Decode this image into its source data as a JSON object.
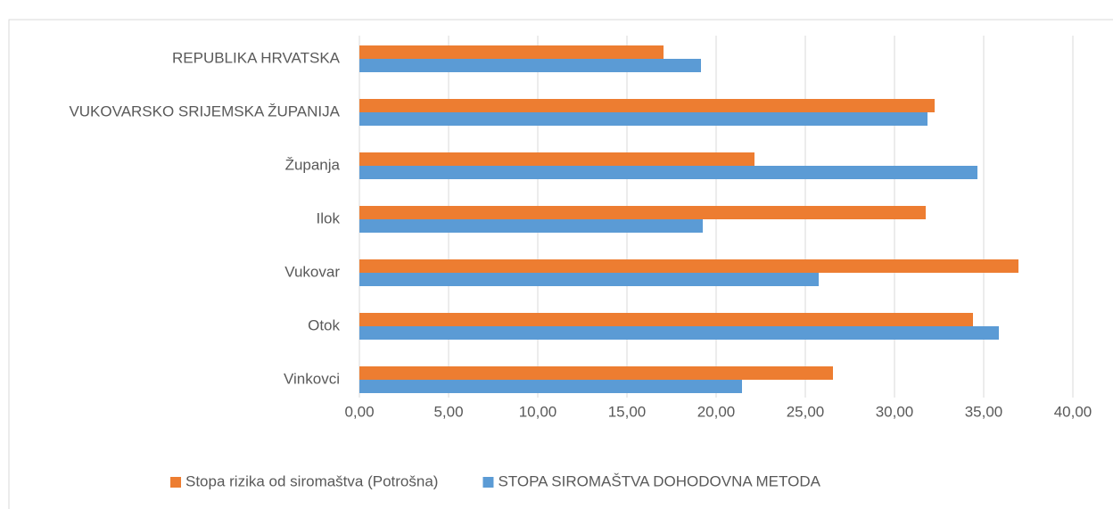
{
  "chart_data": {
    "type": "bar",
    "orientation": "horizontal",
    "categories": [
      "REPUBLIKA HRVATSKA",
      "VUKOVARSKO SRIJEMSKA ŽUPANIJA",
      "Županja",
      "Ilok",
      "Vukovar",
      "Otok",
      "Vinkovci"
    ],
    "series": [
      {
        "name": "Stopa rizika od siromaštva (Potrošna)",
        "color": "#ed7d31",
        "values": [
          17.05,
          32.25,
          22.15,
          31.75,
          36.95,
          34.4,
          26.55
        ]
      },
      {
        "name": "STOPA SIROMAŠTVA DOHODOVNA METODA",
        "color": "#5b9bd5",
        "values": [
          19.15,
          31.85,
          34.65,
          19.25,
          25.75,
          35.85,
          21.45
        ]
      }
    ],
    "xlim": [
      0,
      40
    ],
    "xticks": [
      {
        "value": 0,
        "label": "0,00"
      },
      {
        "value": 5,
        "label": "5,00"
      },
      {
        "value": 10,
        "label": "10,00"
      },
      {
        "value": 15,
        "label": "15,00"
      },
      {
        "value": 20,
        "label": "20,00"
      },
      {
        "value": 25,
        "label": "25,00"
      },
      {
        "value": 30,
        "label": "30,00"
      },
      {
        "value": 35,
        "label": "35,00"
      },
      {
        "value": 40,
        "label": "40,00"
      }
    ],
    "grid": true,
    "legend": "bottom"
  }
}
